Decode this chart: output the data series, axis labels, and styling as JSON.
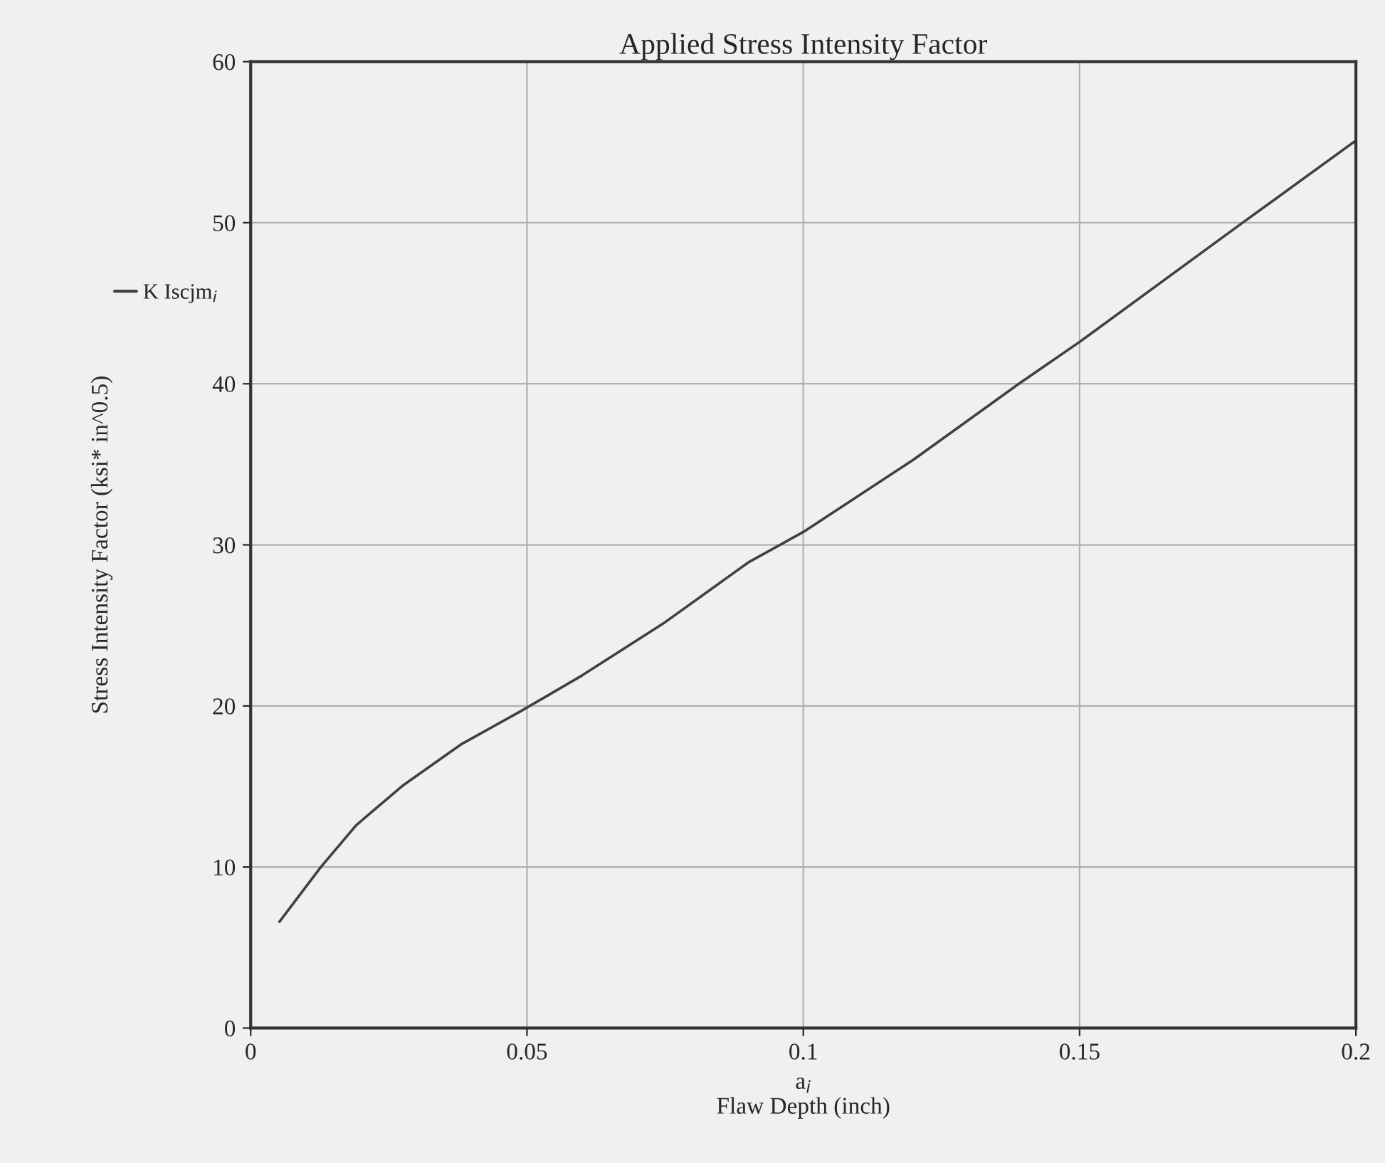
{
  "chart_data": {
    "type": "line",
    "title": "Applied Stress Intensity Factor",
    "xlabel": "a$_{i}$\nFlaw Depth (inch)",
    "ylabel": "Stress Intensity Factor (ksi* in^0.5)",
    "series": [
      {
        "name": "K Iscjm$_{i}$",
        "color": "#404040",
        "x": [
          0.0052,
          0.0127,
          0.0191,
          0.0277,
          0.038,
          0.049,
          0.06,
          0.075,
          0.09,
          0.1,
          0.12,
          0.139,
          0.15,
          0.1795,
          0.2
        ],
        "values": [
          6.6,
          10,
          12.6,
          15.1,
          17.6,
          19.7,
          21.9,
          25.2,
          28.9,
          30.8,
          35.3,
          40,
          42.6,
          50,
          55.1
        ]
      }
    ],
    "xlim": [
      0,
      0.2
    ],
    "ylim": [
      0,
      60
    ],
    "xticks": [
      0,
      0.05,
      0.1,
      0.15,
      0.2
    ],
    "yticks": [
      0,
      10,
      20,
      30,
      40,
      50,
      60
    ],
    "grid": true,
    "legend": "left",
    "marker": "none",
    "line_style": "solid"
  }
}
